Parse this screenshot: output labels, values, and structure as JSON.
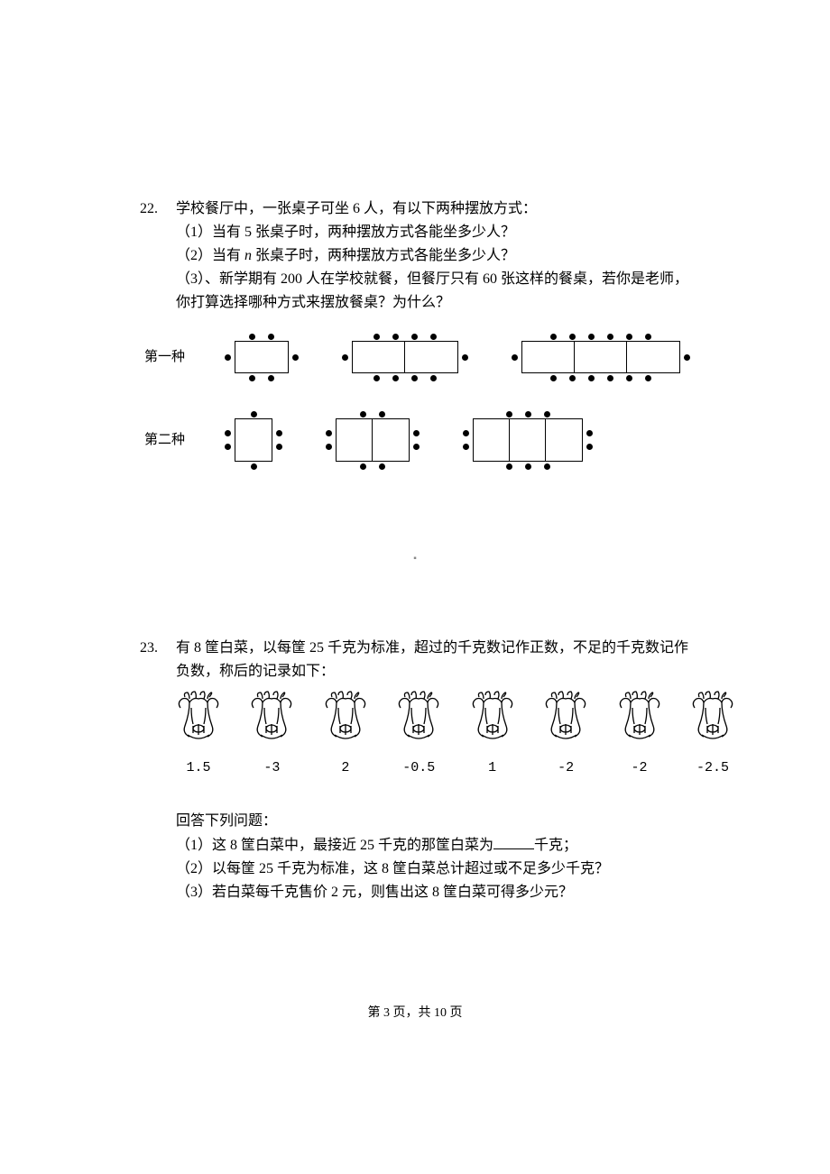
{
  "problem22": {
    "number": "22.",
    "stem": "学校餐厅中，一张桌子可坐 6 人，有以下两种摆放方式：",
    "q1": "（1）当有 5 张桌子时，两种摆放方式各能坐多少人？",
    "q2_pre": "（2）当有 ",
    "q2_var": "n",
    "q2_post": " 张桌子时，两种摆放方式各能坐多少人？",
    "q3a": "（3）、新学期有 200 人在学校就餐，但餐厅只有 60 张这样的餐桌，若你是老师，",
    "q3b": "你打算选择哪种方式来摆放餐桌？为什么？",
    "label1": "第一种",
    "label2": "第二种"
  },
  "problem23": {
    "number": "23.",
    "stem1": "有 8 筐白菜，以每筐 25 千克为标准，超过的千克数记作正数，不足的千克数记作",
    "stem2": "负数，称后的记录如下：",
    "values": [
      "1.5",
      "-3",
      "2",
      "-0.5",
      "1",
      "-2",
      "-2",
      "-2.5"
    ],
    "followup_label": "回答下列问题：",
    "q1_pre": "（1）这 8 筐白菜中，最接近 25 千克的那筐白菜为",
    "q1_post": "千克；",
    "q2": "（2）以每筐 25 千克为标准，这 8 筐白菜总计超过或不足多少千克？",
    "q3": "（3）若白菜每千克售价 2 元，则售出这 8 筐白菜可得多少元？"
  },
  "footer": {
    "pre": "第 ",
    "current": "3",
    "mid": " 页，共 ",
    "total": "10",
    "post": " 页"
  }
}
